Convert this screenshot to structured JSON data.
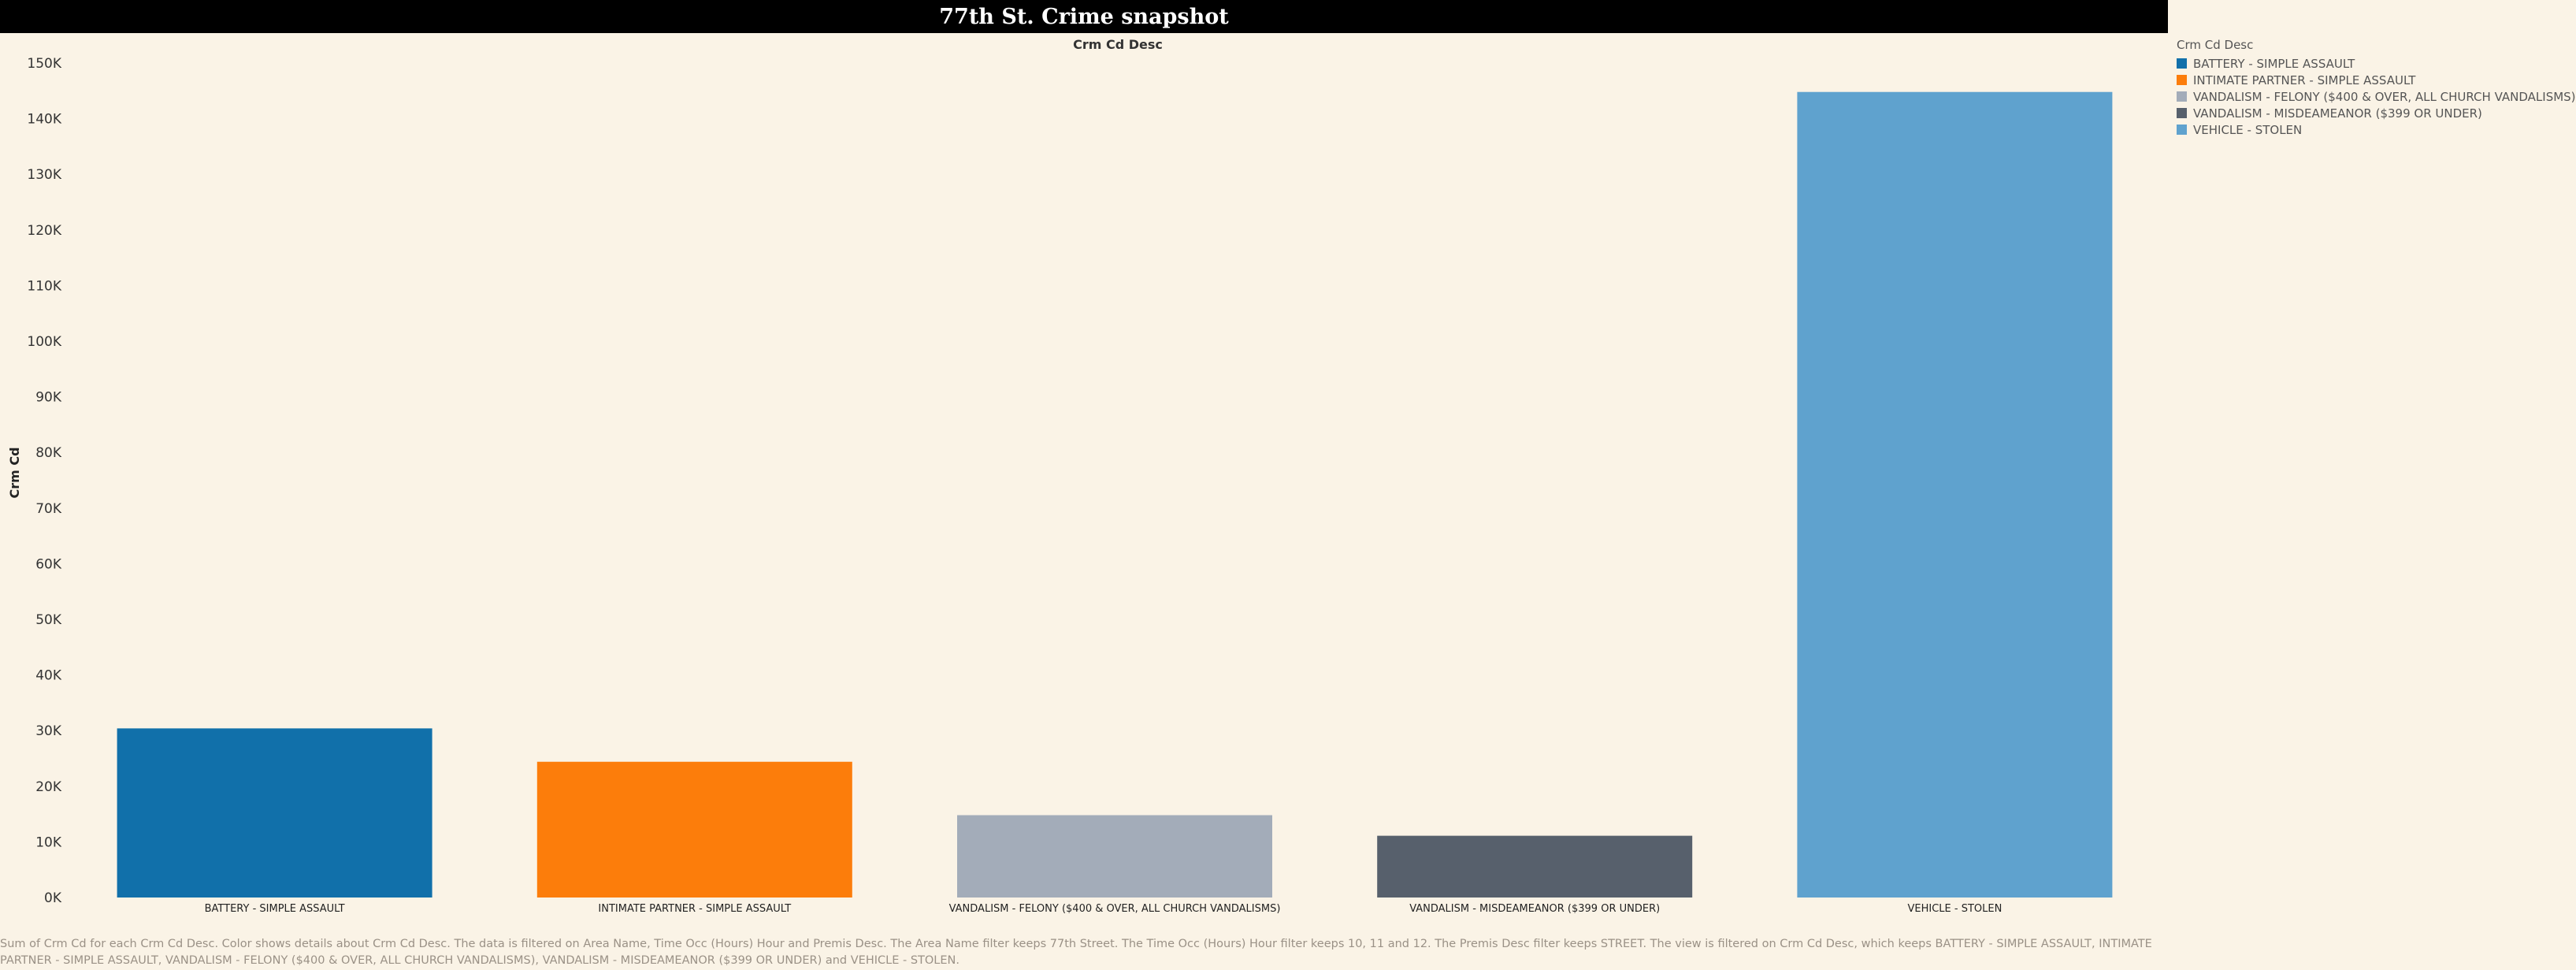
{
  "dashboard": {
    "title": "77th St. Crime snapshot",
    "caption": "Sum of Crm Cd for each Crm Cd Desc.  Color shows details about Crm Cd Desc. The data is filtered on Area Name, Time Occ (Hours) Hour and Premis Desc. The Area Name filter keeps 77th Street. The Time Occ (Hours) Hour filter keeps 10, 11 and 12. The Premis Desc filter keeps STREET. The view is filtered on Crm Cd Desc, which keeps BATTERY - SIMPLE ASSAULT, INTIMATE PARTNER - SIMPLE ASSAULT, VANDALISM - FELONY ($400 & OVER, ALL CHURCH VANDALISMS), VANDALISM - MISDEAMEANOR ($399 OR UNDER) and VEHICLE - STOLEN."
  },
  "legend": {
    "title": "Crm Cd Desc",
    "position": "top-right",
    "items": [
      {
        "label": "BATTERY - SIMPLE ASSAULT",
        "color": "#1170aa"
      },
      {
        "label": "INTIMATE PARTNER - SIMPLE ASSAULT",
        "color": "#fc7d0b"
      },
      {
        "label": "VANDALISM - FELONY ($400 & OVER, ALL CHURCH VANDALISMS)",
        "color": "#a3acb9"
      },
      {
        "label": "VANDALISM - MISDEAMEANOR ($399 OR UNDER)",
        "color": "#57606c"
      },
      {
        "label": "VEHICLE - STOLEN",
        "color": "#5fa2ce"
      }
    ]
  },
  "chart_data": {
    "type": "bar",
    "title": "77th St. Crime snapshot",
    "column_header": "Crm Cd Desc",
    "ylabel": "Crm Cd",
    "xlabel": "",
    "ylim": [
      0,
      150000
    ],
    "yticks": [
      0,
      10000,
      20000,
      30000,
      40000,
      50000,
      60000,
      70000,
      80000,
      90000,
      100000,
      110000,
      120000,
      130000,
      140000,
      150000
    ],
    "ytick_labels": [
      "0K",
      "10K",
      "20K",
      "30K",
      "40K",
      "50K",
      "60K",
      "70K",
      "80K",
      "90K",
      "100K",
      "110K",
      "120K",
      "130K",
      "140K",
      "150K"
    ],
    "grid": false,
    "categories": [
      "BATTERY - SIMPLE ASSAULT",
      "INTIMATE PARTNER - SIMPLE ASSAULT",
      "VANDALISM - FELONY ($400 & OVER, ALL CHURCH VANDALISMS)",
      "VANDALISM - MISDEAMEANOR ($399 OR UNDER)",
      "VEHICLE - STOLEN"
    ],
    "values": [
      30400,
      24400,
      14800,
      11100,
      144800
    ],
    "colors": [
      "#1170aa",
      "#fc7d0b",
      "#a3acb9",
      "#57606c",
      "#5fa2ce"
    ]
  }
}
